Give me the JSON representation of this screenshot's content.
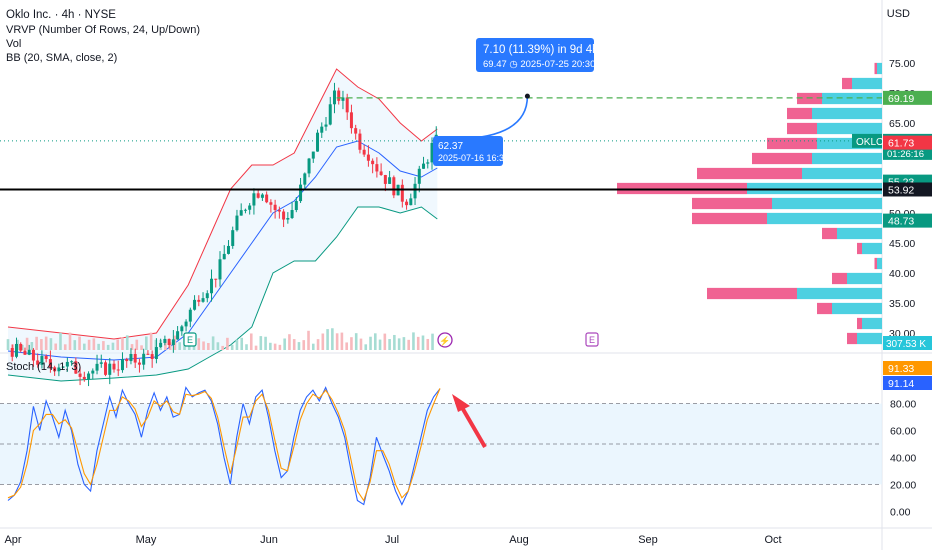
{
  "header": {
    "title": "Oklo Inc. · 4h · NYSE",
    "vrvp": "VRVP (Number Of Rows, 24, Up/Down)",
    "vol": "Vol",
    "bb": "BB (20, SMA, close, 2)",
    "currency": "USD",
    "stoch": "Stoch (14, 1, 3)"
  },
  "colors": {
    "up": "#089981",
    "down": "#f23645",
    "bb_upper": "#f23645",
    "bb_lower": "#089981",
    "bb_basis": "#2962ff",
    "bb_fill": "#e3f2fd",
    "vp_up": "#4dd0e1",
    "vp_down": "#f06292",
    "stoch_k": "#2962ff",
    "stoch_d": "#ff9800",
    "annotation": "#2979ff"
  },
  "chart_data": [
    {
      "type": "candlestick",
      "title": "Oklo Inc. · 4h · NYSE",
      "price_axis": {
        "ticks": [
          30,
          35,
          40,
          45,
          50,
          55,
          60,
          65,
          70,
          75
        ],
        "range": [
          28,
          78
        ]
      },
      "x_axis": {
        "ticks": [
          "Apr",
          "May",
          "Jun",
          "Jul",
          "Aug",
          "Sep",
          "Oct"
        ]
      },
      "price_path": [
        [
          0,
          27.5
        ],
        [
          4,
          26
        ],
        [
          8,
          24.5
        ],
        [
          10,
          25
        ],
        [
          14,
          23.5
        ],
        [
          18,
          24
        ],
        [
          22,
          25
        ],
        [
          26,
          26
        ],
        [
          29,
          27.5
        ],
        [
          32,
          30
        ],
        [
          34,
          33
        ],
        [
          36,
          36.5
        ],
        [
          38,
          38
        ],
        [
          40,
          41
        ],
        [
          42,
          46
        ],
        [
          44,
          50
        ],
        [
          46,
          53
        ],
        [
          48,
          54
        ],
        [
          50,
          51
        ],
        [
          52,
          49
        ],
        [
          54,
          51
        ],
        [
          56,
          56
        ],
        [
          58,
          62
        ],
        [
          60,
          66
        ],
        [
          62,
          70
        ],
        [
          64,
          67
        ],
        [
          66,
          62
        ],
        [
          68,
          60
        ],
        [
          70,
          57
        ],
        [
          72,
          55
        ],
        [
          74,
          53
        ],
        [
          75,
          52
        ],
        [
          77,
          55
        ],
        [
          78,
          57
        ],
        [
          79,
          59
        ],
        [
          80,
          61
        ],
        [
          81,
          62.02
        ]
      ],
      "bollinger": {
        "upper": [
          [
            0,
            31
          ],
          [
            10,
            30
          ],
          [
            20,
            29
          ],
          [
            28,
            30
          ],
          [
            34,
            38
          ],
          [
            38,
            46
          ],
          [
            42,
            54
          ],
          [
            46,
            58
          ],
          [
            50,
            58
          ],
          [
            54,
            60
          ],
          [
            58,
            67
          ],
          [
            62,
            74
          ],
          [
            66,
            71
          ],
          [
            70,
            69
          ],
          [
            74,
            65
          ],
          [
            78,
            62
          ],
          [
            81,
            64
          ]
        ],
        "basis": [
          [
            0,
            27
          ],
          [
            10,
            26
          ],
          [
            20,
            25.5
          ],
          [
            28,
            26
          ],
          [
            34,
            30
          ],
          [
            38,
            35
          ],
          [
            42,
            40
          ],
          [
            46,
            45
          ],
          [
            50,
            50
          ],
          [
            54,
            52
          ],
          [
            58,
            56
          ],
          [
            62,
            61
          ],
          [
            66,
            62
          ],
          [
            70,
            60
          ],
          [
            74,
            57
          ],
          [
            78,
            56
          ],
          [
            81,
            57.5
          ]
        ],
        "lower": [
          [
            0,
            23
          ],
          [
            10,
            22
          ],
          [
            20,
            22.5
          ],
          [
            28,
            23
          ],
          [
            34,
            24
          ],
          [
            38,
            26
          ],
          [
            42,
            28
          ],
          [
            46,
            31
          ],
          [
            50,
            40
          ],
          [
            54,
            42
          ],
          [
            58,
            42
          ],
          [
            62,
            46
          ],
          [
            66,
            51
          ],
          [
            70,
            51
          ],
          [
            74,
            50
          ],
          [
            78,
            51
          ],
          [
            81,
            49
          ]
        ]
      },
      "price_labels": [
        {
          "value": 69.19,
          "text": "69.19",
          "color": "#4caf50"
        },
        {
          "value": 62.02,
          "text": "62.02",
          "color": "#089981",
          "symbol": "OKLO",
          "countdown": "01:26:16"
        },
        {
          "value": 61.73,
          "text": "61.73",
          "color": "#f23645"
        },
        {
          "value": 55.23,
          "text": "55.23",
          "color": "#089981"
        },
        {
          "value": 53.92,
          "text": "53.92",
          "color": "#131722"
        },
        {
          "value": 48.73,
          "text": "48.73",
          "color": "#089981"
        },
        {
          "value": 307530,
          "text": "307.53 K",
          "color": "#26c6da"
        }
      ],
      "horizontal_lines": [
        {
          "value": 53.92,
          "style": "solid",
          "color": "#000000"
        },
        {
          "value": 69.19,
          "style": "dashed",
          "color": "#4caf50"
        }
      ],
      "volume_profile": [
        {
          "price": 74,
          "up": 1,
          "down": 0.5
        },
        {
          "price": 71.5,
          "up": 6,
          "down": 2
        },
        {
          "price": 69,
          "up": 12,
          "down": 5
        },
        {
          "price": 66.5,
          "up": 14,
          "down": 5
        },
        {
          "price": 64,
          "up": 13,
          "down": 6
        },
        {
          "price": 61.5,
          "up": 13,
          "down": 10
        },
        {
          "price": 59,
          "up": 14,
          "down": 12
        },
        {
          "price": 56.5,
          "up": 16,
          "down": 21
        },
        {
          "price": 54,
          "up": 27,
          "down": 26
        },
        {
          "price": 51.5,
          "up": 22,
          "down": 16
        },
        {
          "price": 49,
          "up": 23,
          "down": 15
        },
        {
          "price": 46.5,
          "up": 9,
          "down": 3
        },
        {
          "price": 44,
          "up": 4,
          "down": 1
        },
        {
          "price": 41.5,
          "up": 1,
          "down": 0.5
        },
        {
          "price": 39,
          "up": 7,
          "down": 3
        },
        {
          "price": 36.5,
          "up": 17,
          "down": 18
        },
        {
          "price": 34,
          "up": 10,
          "down": 3
        },
        {
          "price": 31.5,
          "up": 4,
          "down": 1
        },
        {
          "price": 29,
          "up": 5,
          "down": 2
        }
      ],
      "annotations": {
        "projection": {
          "headline": "7.10 (11.39%) in 9d 4h",
          "detail": "69.47 ◷ 2025-07-25 20:30",
          "from": [
            81,
            62.37
          ],
          "to": [
            98,
            69.47
          ]
        },
        "anchor": {
          "value": "62.37",
          "time": "2025-07-16 16:30"
        }
      },
      "event_badges": [
        "E",
        "⚡",
        "E"
      ]
    },
    {
      "type": "line",
      "title": "Stoch (14, 1, 3)",
      "ylim": [
        -5,
        105
      ],
      "y_ticks": [
        0,
        20,
        40,
        60,
        80
      ],
      "levels": [
        20,
        50,
        80
      ],
      "series": [
        {
          "values": [
            8,
            12,
            22,
            45,
            78,
            60,
            82,
            70,
            55,
            75,
            60,
            35,
            20,
            15,
            45,
            65,
            85,
            70,
            90,
            80,
            72,
            55,
            75,
            88,
            75,
            85,
            70,
            72,
            92,
            85,
            88,
            90,
            82,
            65,
            40,
            20,
            55,
            80,
            65,
            85,
            90,
            70,
            45,
            25,
            30,
            55,
            75,
            85,
            90,
            82,
            92,
            80,
            70,
            55,
            30,
            8,
            5,
            25,
            55,
            42,
            30,
            15,
            5,
            15,
            35,
            55,
            75,
            85,
            91.14
          ]
        },
        {
          "values": [
            10,
            12,
            18,
            35,
            60,
            65,
            72,
            72,
            65,
            68,
            62,
            45,
            28,
            20,
            35,
            55,
            75,
            75,
            85,
            82,
            76,
            63,
            70,
            82,
            78,
            82,
            74,
            72,
            87,
            86,
            87,
            89,
            84,
            70,
            48,
            28,
            48,
            70,
            70,
            82,
            87,
            75,
            53,
            32,
            30,
            48,
            68,
            80,
            87,
            84,
            90,
            83,
            73,
            60,
            38,
            15,
            8,
            22,
            45,
            45,
            35,
            20,
            10,
            15,
            30,
            48,
            68,
            80,
            91.33
          ]
        }
      ],
      "value_labels": [
        {
          "text": "91.33",
          "color": "#ff9800"
        },
        {
          "text": "91.14",
          "color": "#2962ff"
        }
      ]
    }
  ]
}
